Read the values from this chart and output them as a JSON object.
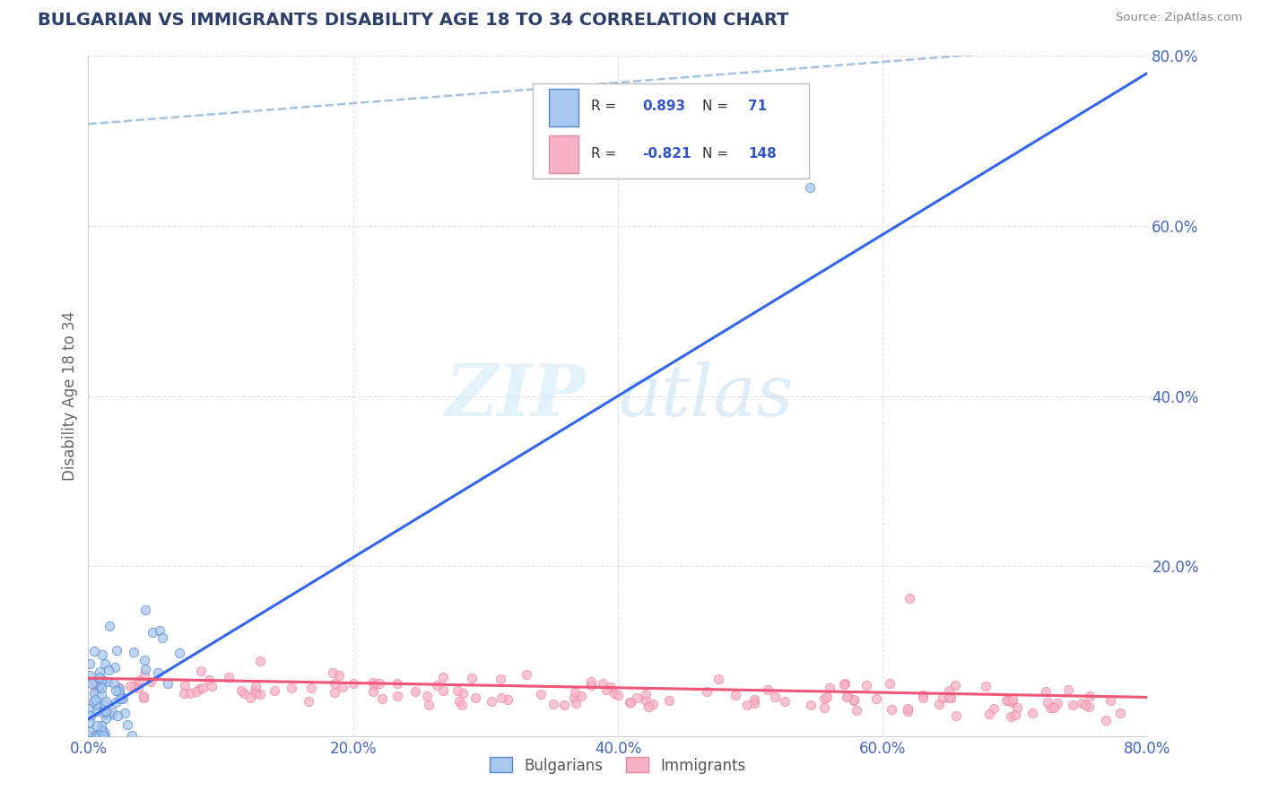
{
  "title": "BULGARIAN VS IMMIGRANTS DISABILITY AGE 18 TO 34 CORRELATION CHART",
  "source_text": "Source: ZipAtlas.com",
  "ylabel": "Disability Age 18 to 34",
  "xlim": [
    0.0,
    0.8
  ],
  "ylim": [
    0.0,
    0.8
  ],
  "xtick_vals": [
    0.0,
    0.2,
    0.4,
    0.6,
    0.8
  ],
  "ytick_vals": [
    0.2,
    0.4,
    0.6,
    0.8
  ],
  "bulgarian_color": "#a8c8f0",
  "bulgarian_edge": "#5588cc",
  "immigrant_color": "#f8b0c4",
  "immigrant_edge": "#e888a0",
  "trend_bulgarian_color": "#3366ee",
  "trend_immigrant_color": "#ee5577",
  "trend_dashed_color": "#99bbdd",
  "R_bulgarian": 0.893,
  "N_bulgarian": 71,
  "R_immigrant": -0.821,
  "N_immigrant": 148,
  "legend_label_bulgarian": "Bulgarians",
  "legend_label_immigrant": "Immigrants",
  "watermark_zip": "ZIP",
  "watermark_atlas": "atlas",
  "background_color": "#ffffff",
  "grid_color": "#cccccc",
  "title_color": "#2c3e6b",
  "tick_color": "#4466bb",
  "legend_text_color": "#333333",
  "legend_val_color": "#3355cc"
}
